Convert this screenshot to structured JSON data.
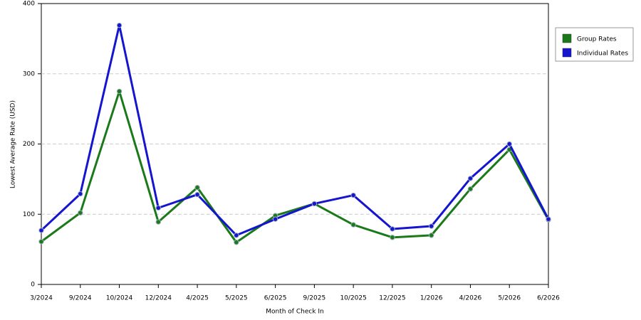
{
  "chart_data": {
    "type": "line",
    "x_label": "Month of Check In",
    "y_label": "Lowest Average Rate (USD)",
    "categories": [
      "3/2024",
      "9/2024",
      "10/2024",
      "12/2024",
      "4/2025",
      "5/2025",
      "6/2025",
      "9/2025",
      "10/2025",
      "12/2025",
      "1/2026",
      "4/2026",
      "5/2026",
      "6/2026"
    ],
    "series": [
      {
        "name": "Group Rates",
        "color": "#1a7a1a",
        "values": [
          61,
          102,
          275,
          89,
          138,
          60,
          98,
          115,
          85,
          67,
          70,
          136,
          192,
          92
        ]
      },
      {
        "name": "Individual Rates",
        "color": "#1515d0",
        "values": [
          77,
          129,
          369,
          109,
          128,
          70,
          93,
          115,
          127,
          79,
          83,
          151,
          200,
          93
        ]
      }
    ],
    "ylim": [
      0,
      400
    ],
    "yticks": [
      0,
      100,
      200,
      300,
      400
    ],
    "grid": true,
    "legend": "right"
  }
}
